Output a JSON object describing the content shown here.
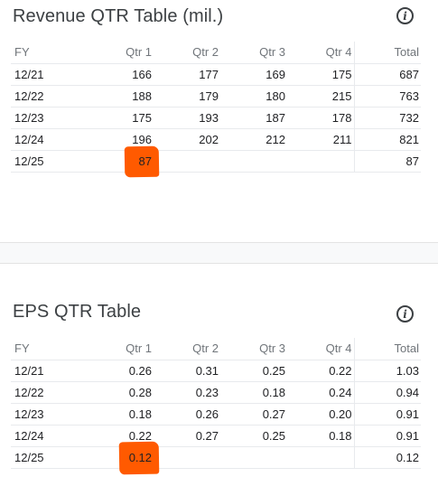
{
  "revenue": {
    "title": "Revenue QTR Table (mil.)",
    "headers": [
      "FY",
      "Qtr 1",
      "Qtr 2",
      "Qtr 3",
      "Qtr 4",
      "Total"
    ],
    "rows": [
      [
        "12/21",
        "166",
        "177",
        "169",
        "175",
        "687"
      ],
      [
        "12/22",
        "188",
        "179",
        "180",
        "215",
        "763"
      ],
      [
        "12/23",
        "175",
        "193",
        "187",
        "178",
        "732"
      ],
      [
        "12/24",
        "196",
        "202",
        "212",
        "211",
        "821"
      ],
      [
        "12/25",
        "87",
        "",
        "",
        "",
        "87"
      ]
    ]
  },
  "eps": {
    "title": "EPS QTR Table",
    "headers": [
      "FY",
      "Qtr 1",
      "Qtr 2",
      "Qtr 3",
      "Qtr 4",
      "Total"
    ],
    "rows": [
      [
        "12/21",
        "0.26",
        "0.31",
        "0.25",
        "0.22",
        "1.03"
      ],
      [
        "12/22",
        "0.28",
        "0.23",
        "0.18",
        "0.24",
        "0.94"
      ],
      [
        "12/23",
        "0.18",
        "0.26",
        "0.27",
        "0.20",
        "0.91"
      ],
      [
        "12/24",
        "0.22",
        "0.27",
        "0.25",
        "0.18",
        "0.91"
      ],
      [
        "12/25",
        "0.12",
        "",
        "",
        "",
        "0.12"
      ]
    ]
  },
  "icons": {
    "info": "info-icon"
  },
  "highlight_color": "#ff5a00"
}
